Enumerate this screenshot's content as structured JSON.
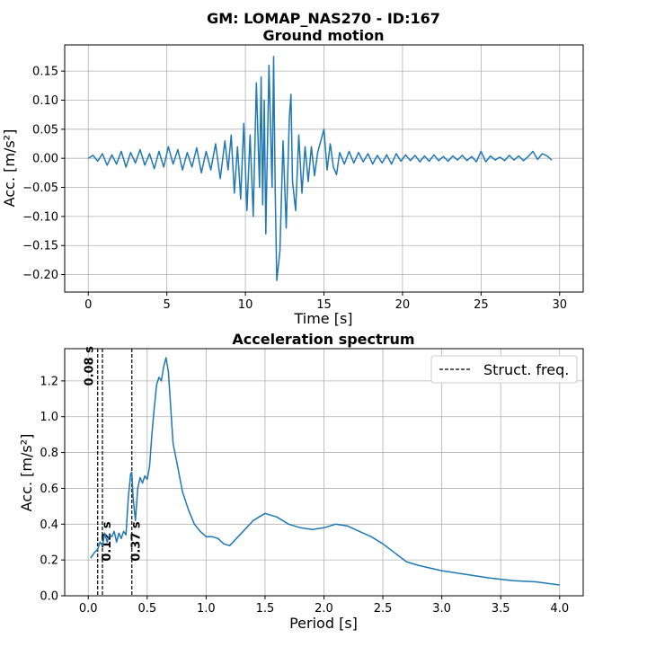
{
  "suptitle": "GM: LOMAP_NAS270 - ID:167",
  "chart_data": [
    {
      "type": "line",
      "title": "Ground motion",
      "xlabel": "Time [s]",
      "ylabel": "Acc. [m/s²]",
      "xlim": [
        -1.5,
        31.5
      ],
      "ylim": [
        -0.23,
        0.195
      ],
      "xticks": [
        0,
        5,
        10,
        15,
        20,
        25,
        30
      ],
      "xtick_labels": [
        "0",
        "5",
        "10",
        "15",
        "20",
        "25",
        "30"
      ],
      "yticks": [
        -0.2,
        -0.15,
        -0.1,
        -0.05,
        0.0,
        0.05,
        0.1,
        0.15
      ],
      "ytick_labels": [
        "−0.20",
        "−0.15",
        "−0.10",
        "−0.05",
        "0.00",
        "0.05",
        "0.10",
        "0.15"
      ],
      "grid": true,
      "color": "#1f77b4",
      "x": [
        0,
        0.3,
        0.6,
        0.9,
        1.2,
        1.5,
        1.8,
        2.1,
        2.4,
        2.7,
        3.0,
        3.3,
        3.6,
        3.9,
        4.2,
        4.5,
        4.8,
        5.1,
        5.4,
        5.7,
        6.0,
        6.3,
        6.6,
        6.9,
        7.2,
        7.5,
        7.8,
        8.1,
        8.4,
        8.7,
        8.9,
        9.1,
        9.3,
        9.5,
        9.7,
        9.9,
        10.1,
        10.3,
        10.5,
        10.7,
        10.9,
        11.0,
        11.1,
        11.2,
        11.3,
        11.5,
        11.7,
        11.8,
        11.9,
        12.0,
        12.2,
        12.4,
        12.6,
        12.8,
        12.9,
        13.0,
        13.2,
        13.4,
        13.6,
        13.8,
        14.0,
        14.2,
        14.4,
        14.6,
        14.8,
        15.0,
        15.2,
        15.4,
        15.6,
        15.8,
        16.0,
        16.3,
        16.6,
        16.9,
        17.2,
        17.5,
        17.8,
        18.1,
        18.4,
        18.7,
        19.0,
        19.3,
        19.6,
        19.9,
        20.2,
        20.5,
        20.8,
        21.1,
        21.4,
        21.7,
        22.0,
        22.3,
        22.6,
        22.9,
        23.2,
        23.5,
        23.8,
        24.1,
        24.4,
        24.7,
        25.0,
        25.3,
        25.6,
        25.9,
        26.2,
        26.5,
        26.8,
        27.1,
        27.4,
        27.7,
        28.0,
        28.3,
        28.6,
        28.9,
        29.2,
        29.5
      ],
      "y": [
        0.0,
        0.005,
        -0.005,
        0.008,
        -0.012,
        0.006,
        -0.01,
        0.012,
        -0.015,
        0.01,
        -0.008,
        0.015,
        -0.012,
        0.008,
        -0.018,
        0.012,
        -0.015,
        0.02,
        -0.01,
        0.015,
        -0.02,
        0.01,
        -0.015,
        0.018,
        -0.025,
        0.012,
        -0.02,
        0.025,
        -0.035,
        0.03,
        -0.02,
        0.04,
        -0.06,
        0.02,
        -0.07,
        0.06,
        -0.09,
        0.04,
        -0.1,
        0.13,
        -0.05,
        0.14,
        -0.08,
        0.1,
        -0.13,
        0.16,
        -0.05,
        0.175,
        -0.06,
        -0.21,
        -0.16,
        0.03,
        -0.12,
        0.07,
        0.11,
        -0.04,
        -0.09,
        0.04,
        -0.06,
        0.02,
        -0.04,
        0.02,
        -0.03,
        0.01,
        0.03,
        0.05,
        -0.02,
        0.025,
        -0.015,
        -0.028,
        0.01,
        -0.01,
        0.012,
        -0.008,
        0.01,
        -0.006,
        0.008,
        -0.01,
        0.005,
        -0.008,
        0.006,
        -0.01,
        0.008,
        -0.005,
        0.006,
        -0.004,
        0.005,
        -0.006,
        0.004,
        -0.005,
        0.006,
        -0.004,
        0.003,
        -0.005,
        0.004,
        -0.003,
        0.005,
        -0.004,
        0.003,
        -0.006,
        0.012,
        -0.006,
        0.004,
        -0.003,
        0.002,
        -0.004,
        0.005,
        -0.003,
        0.004,
        -0.004,
        0.003,
        0.012,
        -0.002,
        0.008,
        0.004,
        -0.003
      ]
    },
    {
      "type": "line",
      "title": "Acceleration spectrum",
      "xlabel": "Period [s]",
      "ylabel": "Acc. [m/s²]",
      "xlim": [
        -0.2,
        4.2
      ],
      "ylim": [
        0,
        1.38
      ],
      "xticks": [
        0.0,
        0.5,
        1.0,
        1.5,
        2.0,
        2.5,
        3.0,
        3.5,
        4.0
      ],
      "xtick_labels": [
        "0.0",
        "0.5",
        "1.0",
        "1.5",
        "2.0",
        "2.5",
        "3.0",
        "3.5",
        "4.0"
      ],
      "yticks": [
        0.0,
        0.2,
        0.4,
        0.6,
        0.8,
        1.0,
        1.2
      ],
      "ytick_labels": [
        "0.0",
        "0.2",
        "0.4",
        "0.6",
        "0.8",
        "1.0",
        "1.2"
      ],
      "grid": true,
      "legend": {
        "entries": [
          "Struct. freq."
        ],
        "placement": "top-right"
      },
      "color": "#1f77b4",
      "x": [
        0.02,
        0.05,
        0.08,
        0.1,
        0.12,
        0.14,
        0.16,
        0.18,
        0.2,
        0.22,
        0.24,
        0.26,
        0.28,
        0.3,
        0.32,
        0.34,
        0.36,
        0.37,
        0.38,
        0.4,
        0.42,
        0.44,
        0.46,
        0.48,
        0.5,
        0.52,
        0.54,
        0.56,
        0.58,
        0.6,
        0.62,
        0.64,
        0.66,
        0.68,
        0.7,
        0.72,
        0.75,
        0.8,
        0.85,
        0.9,
        0.95,
        1.0,
        1.05,
        1.1,
        1.15,
        1.2,
        1.3,
        1.4,
        1.5,
        1.6,
        1.7,
        1.8,
        1.9,
        2.0,
        2.1,
        2.2,
        2.3,
        2.4,
        2.5,
        2.6,
        2.7,
        2.8,
        3.0,
        3.2,
        3.4,
        3.6,
        3.8,
        4.0
      ],
      "y": [
        0.21,
        0.24,
        0.26,
        0.3,
        0.28,
        0.35,
        0.3,
        0.34,
        0.33,
        0.36,
        0.3,
        0.35,
        0.32,
        0.36,
        0.34,
        0.55,
        0.68,
        0.69,
        0.55,
        0.42,
        0.6,
        0.66,
        0.63,
        0.67,
        0.65,
        0.72,
        0.9,
        1.05,
        1.18,
        1.22,
        1.2,
        1.28,
        1.33,
        1.25,
        1.05,
        0.85,
        0.75,
        0.58,
        0.48,
        0.4,
        0.36,
        0.33,
        0.33,
        0.32,
        0.29,
        0.28,
        0.35,
        0.42,
        0.46,
        0.44,
        0.4,
        0.38,
        0.37,
        0.38,
        0.4,
        0.39,
        0.36,
        0.33,
        0.29,
        0.24,
        0.19,
        0.17,
        0.14,
        0.12,
        0.1,
        0.085,
        0.078,
        0.06
      ],
      "struct_periods": [
        0.08,
        0.12,
        0.37
      ],
      "struct_labels": [
        "0.08 s",
        "0.12 s",
        "0.37 s"
      ]
    }
  ]
}
